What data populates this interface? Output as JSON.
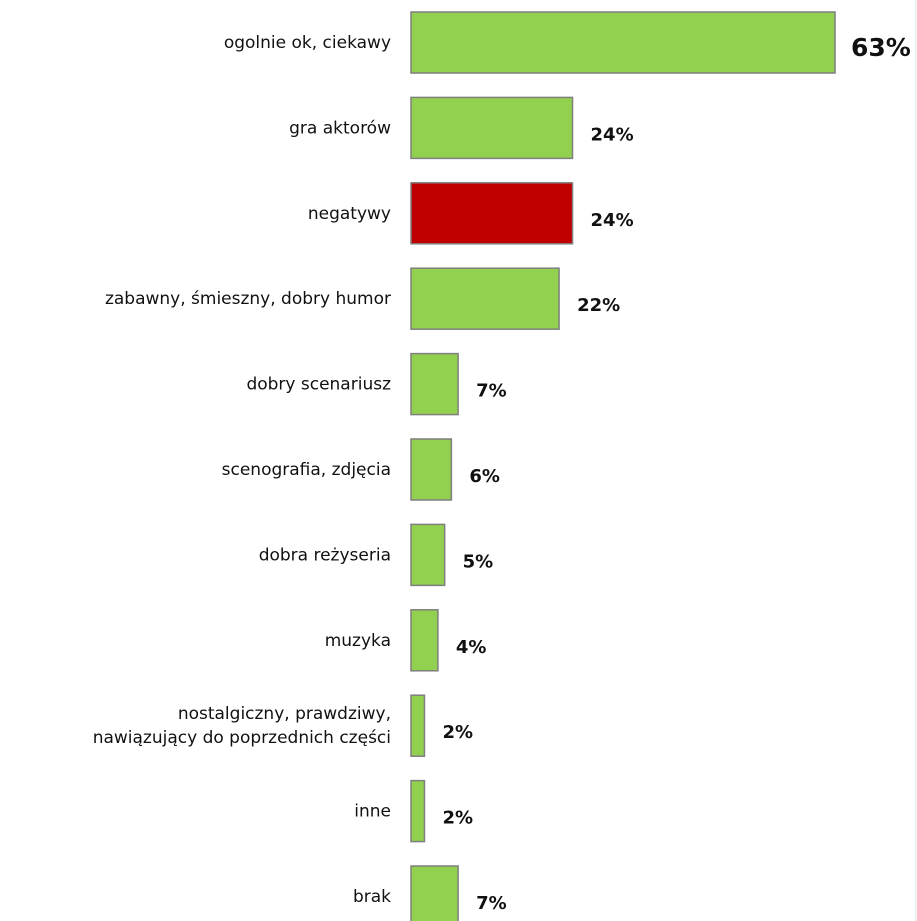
{
  "chart_data": {
    "type": "bar",
    "orientation": "horizontal",
    "categories": [
      "ogolnie ok, ciekawy",
      "gra aktorów",
      "negatywy",
      "zabawny, śmieszny, dobry humor",
      "dobry scenariusz",
      "scenografia, zdjęcia",
      "dobra reżyseria",
      "muzyka",
      "nostalgiczny, prawdziwy,\nnawiązujący do poprzednich części",
      "inne",
      "brak"
    ],
    "values": [
      63,
      24,
      24,
      22,
      7,
      6,
      5,
      4,
      2,
      2,
      7
    ],
    "value_labels": [
      "63%",
      "24%",
      "24%",
      "22%",
      "7%",
      "6%",
      "5%",
      "4%",
      "2%",
      "2%",
      "7%"
    ],
    "bar_colors": [
      "#92d050",
      "#92d050",
      "#c00000",
      "#92d050",
      "#92d050",
      "#92d050",
      "#92d050",
      "#92d050",
      "#92d050",
      "#92d050",
      "#92d050"
    ],
    "unit": "%",
    "xlim": [
      0,
      63
    ],
    "grid": false,
    "legend": "none",
    "title": "",
    "xlabel": "",
    "ylabel": ""
  },
  "colors": {
    "positive": "#92d050",
    "negative": "#c00000",
    "bar_border": "#7f7f7f",
    "text": "#111111"
  }
}
